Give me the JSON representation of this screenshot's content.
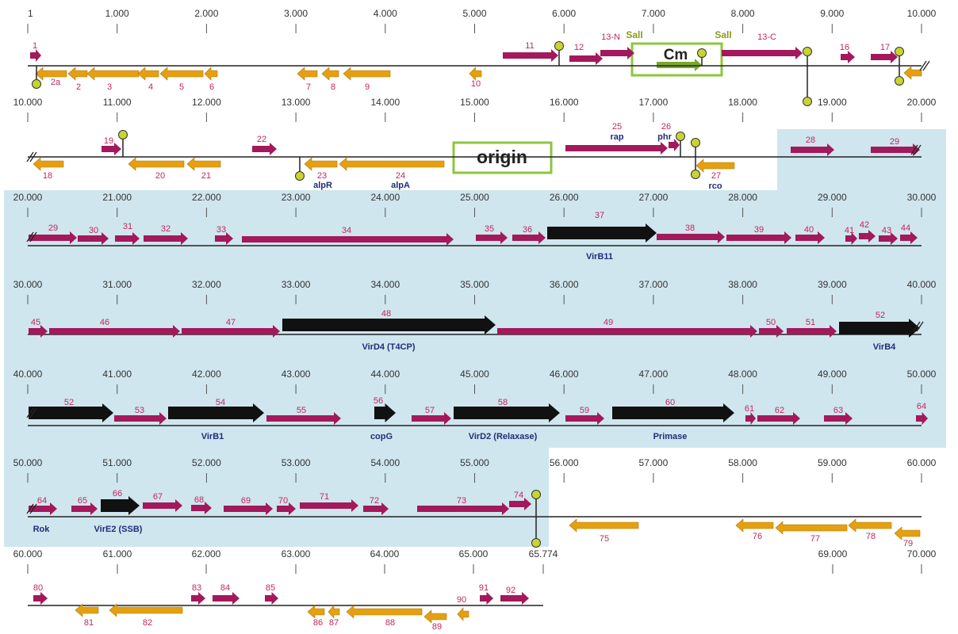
{
  "rows": [
    {
      "ticks": [
        "1",
        "1.000",
        "2.000",
        "3.000",
        "4.000",
        "5.000",
        "6.000",
        "7.000",
        "8.000",
        "9.000",
        "10.000"
      ],
      "genes": [
        {
          "label": "1"
        },
        {
          "label": "2a"
        },
        {
          "label": "2"
        },
        {
          "label": "3"
        },
        {
          "label": "4"
        },
        {
          "label": "5"
        },
        {
          "label": "6"
        },
        {
          "label": "7"
        },
        {
          "label": "8"
        },
        {
          "label": "9"
        },
        {
          "label": "10"
        },
        {
          "label": "11"
        },
        {
          "label": "12"
        },
        {
          "label": "13-N"
        },
        {
          "label": "13-C"
        },
        {
          "label": "16"
        },
        {
          "label": "17"
        }
      ],
      "annotations": [
        "SalI",
        "Cm",
        "SalI"
      ]
    },
    {
      "ticks": [
        "10.000",
        "11.000",
        "12.000",
        "13.000",
        "14.000",
        "15.000",
        "16.000",
        "17.000",
        "18.000",
        "19.000",
        "20.000"
      ],
      "genes": [
        {
          "label": "18"
        },
        {
          "label": "19"
        },
        {
          "label": "20"
        },
        {
          "label": "21"
        },
        {
          "label": "22"
        },
        {
          "label": "23",
          "note": "alpR"
        },
        {
          "label": "24",
          "note": "alpA"
        },
        {
          "label": "25",
          "note": "rap"
        },
        {
          "label": "26",
          "note": "phr"
        },
        {
          "label": "27",
          "note": "rco"
        },
        {
          "label": "28"
        },
        {
          "label": "29"
        }
      ],
      "annotations": [
        "origin"
      ]
    },
    {
      "ticks": [
        "20.000",
        "21.000",
        "22.000",
        "23.000",
        "24.000",
        "25.000",
        "26.000",
        "27.000",
        "28.000",
        "29.000",
        "30.000"
      ],
      "genes": [
        {
          "label": "29"
        },
        {
          "label": "30"
        },
        {
          "label": "31"
        },
        {
          "label": "32"
        },
        {
          "label": "33"
        },
        {
          "label": "34"
        },
        {
          "label": "35"
        },
        {
          "label": "36"
        },
        {
          "label": "37",
          "note": "VirB11"
        },
        {
          "label": "38"
        },
        {
          "label": "39"
        },
        {
          "label": "40"
        },
        {
          "label": "41"
        },
        {
          "label": "42"
        },
        {
          "label": "43"
        },
        {
          "label": "44"
        }
      ]
    },
    {
      "ticks": [
        "30.000",
        "31.000",
        "32.000",
        "33.000",
        "34.000",
        "35.000",
        "36.000",
        "37.000",
        "38.000",
        "39.000",
        "40.000"
      ],
      "genes": [
        {
          "label": "45"
        },
        {
          "label": "46"
        },
        {
          "label": "47"
        },
        {
          "label": "48",
          "note": "VirD4  (T4CP)"
        },
        {
          "label": "49"
        },
        {
          "label": "50"
        },
        {
          "label": "51"
        },
        {
          "label": "52",
          "note": "VirB4"
        }
      ]
    },
    {
      "ticks": [
        "40.000",
        "41.000",
        "42.000",
        "43.000",
        "44.000",
        "45.000",
        "46.000",
        "47.000",
        "48.000",
        "49.000",
        "50.000"
      ],
      "genes": [
        {
          "label": "52"
        },
        {
          "label": "53"
        },
        {
          "label": "54",
          "note": "VirB1"
        },
        {
          "label": "55"
        },
        {
          "label": "56",
          "note": "copG"
        },
        {
          "label": "57"
        },
        {
          "label": "58",
          "note": "VirD2  (Relaxase)"
        },
        {
          "label": "59"
        },
        {
          "label": "60",
          "note": "Primase"
        },
        {
          "label": "61"
        },
        {
          "label": "62"
        },
        {
          "label": "63"
        },
        {
          "label": "64"
        }
      ]
    },
    {
      "ticks": [
        "50.000",
        "51.000",
        "52.000",
        "53.000",
        "54.000",
        "55.000",
        "56.000",
        "57.000",
        "58.000",
        "59.000",
        "60.000"
      ],
      "genes": [
        {
          "label": "64",
          "note": "Rok"
        },
        {
          "label": "65"
        },
        {
          "label": "66",
          "note": "VirE2 (SSB)"
        },
        {
          "label": "67"
        },
        {
          "label": "68"
        },
        {
          "label": "69"
        },
        {
          "label": "70"
        },
        {
          "label": "71"
        },
        {
          "label": "72"
        },
        {
          "label": "73"
        },
        {
          "label": "74"
        },
        {
          "label": "75"
        },
        {
          "label": "76"
        },
        {
          "label": "77"
        },
        {
          "label": "78"
        },
        {
          "label": "79"
        }
      ]
    },
    {
      "ticks": [
        "60.000",
        "61.000",
        "62.000",
        "63.000",
        "64.000",
        "65.000",
        "65.774",
        "69.000",
        "70.000"
      ],
      "genes": [
        {
          "label": "80"
        },
        {
          "label": "81"
        },
        {
          "label": "82"
        },
        {
          "label": "83"
        },
        {
          "label": "84"
        },
        {
          "label": "85"
        },
        {
          "label": "86"
        },
        {
          "label": "87"
        },
        {
          "label": "88"
        },
        {
          "label": "89"
        },
        {
          "label": "90"
        },
        {
          "label": "91"
        },
        {
          "label": "92"
        }
      ]
    }
  ]
}
